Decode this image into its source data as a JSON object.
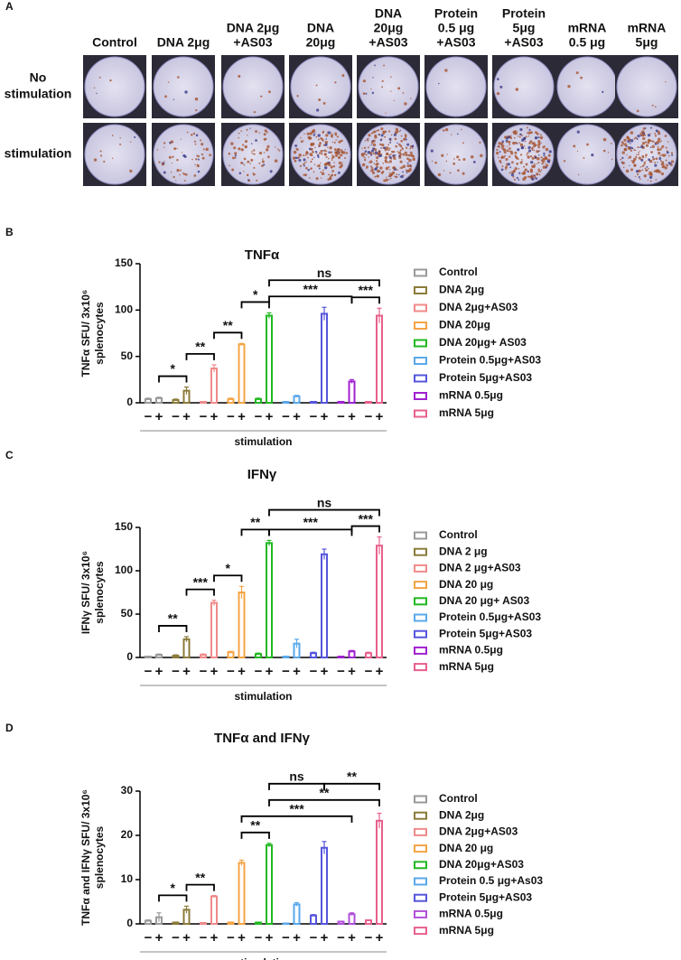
{
  "panel_a": {
    "label": "A",
    "columns": [
      [
        "Control"
      ],
      [
        "DNA 2μg"
      ],
      [
        "DNA 2μg",
        "+AS03"
      ],
      [
        "DNA",
        "20μg"
      ],
      [
        "DNA",
        "20μg",
        "+AS03"
      ],
      [
        "Protein",
        "0.5 μg",
        "+AS03"
      ],
      [
        "Protein",
        "5μg",
        "+AS03"
      ],
      [
        "mRNA",
        "0.5 μg"
      ],
      [
        "mRNA",
        "5μg"
      ]
    ],
    "rows": [
      [
        "No",
        "stimulation"
      ],
      [
        "stimulation"
      ]
    ]
  },
  "chart_data": [
    {
      "type": "bar",
      "panel": "B",
      "title": "TNFα",
      "ylabel": [
        "TNFα SFU/ 3x10⁶",
        "splenocytes"
      ],
      "xlabel": "stimulation",
      "conditions": [
        "−",
        "+"
      ],
      "ylim": [
        0,
        150
      ],
      "yticks": [
        0,
        50,
        100,
        150
      ],
      "series": [
        {
          "name": "Control",
          "color": "#9a9a9a",
          "values": [
            4,
            5
          ],
          "errors": [
            1,
            1
          ]
        },
        {
          "name": "DNA 2μg",
          "color": "#8b7b3a",
          "values": [
            3,
            13
          ],
          "errors": [
            1,
            4
          ]
        },
        {
          "name": "DNA 2μg+AS03",
          "color": "#f08a8a",
          "values": [
            1,
            37
          ],
          "errors": [
            0,
            4
          ]
        },
        {
          "name": "DNA 20μg",
          "color": "#f4a445",
          "values": [
            4,
            63
          ],
          "errors": [
            1,
            1
          ]
        },
        {
          "name": "DNA 20μg+ AS03",
          "color": "#22b822",
          "values": [
            4,
            94
          ],
          "errors": [
            1,
            3
          ]
        },
        {
          "name": "Protein 0.5μg+AS03",
          "color": "#5aa8ea",
          "values": [
            1,
            7
          ],
          "errors": [
            0,
            1
          ]
        },
        {
          "name": "Protein 5μg+AS03",
          "color": "#5555dd",
          "values": [
            1,
            96
          ],
          "errors": [
            0,
            7
          ]
        },
        {
          "name": "mRNA 0.5μg",
          "color": "#a020d0",
          "values": [
            1,
            23
          ],
          "errors": [
            0,
            2
          ]
        },
        {
          "name": "mRNA 5μg",
          "color": "#e8608c",
          "values": [
            1,
            94
          ],
          "errors": [
            0,
            8
          ]
        }
      ],
      "brackets": [
        {
          "from": [
            0,
            1
          ],
          "to": [
            1,
            1
          ],
          "label": "*"
        },
        {
          "from": [
            1,
            1
          ],
          "to": [
            2,
            1
          ],
          "label": "**"
        },
        {
          "from": [
            2,
            1
          ],
          "to": [
            3,
            1
          ],
          "label": "**"
        },
        {
          "from": [
            3,
            1
          ],
          "to": [
            4,
            1
          ],
          "label": "*"
        },
        {
          "from": [
            4,
            1
          ],
          "to": [
            7,
            1
          ],
          "label": "***"
        },
        {
          "from": [
            7,
            1
          ],
          "to": [
            8,
            1
          ],
          "label": "***"
        },
        {
          "from": [
            4,
            1
          ],
          "to": [
            8,
            1
          ],
          "label": "ns"
        }
      ]
    },
    {
      "type": "bar",
      "panel": "C",
      "title": "IFNγ",
      "ylabel": [
        "IFNγ SFU/ 3x10⁶",
        "splenocytes"
      ],
      "xlabel": "stimulation",
      "conditions": [
        "−",
        "+"
      ],
      "ylim": [
        0,
        150
      ],
      "yticks": [
        0,
        50,
        100,
        150
      ],
      "series": [
        {
          "name": "Control",
          "color": "#9a9a9a",
          "values": [
            1,
            3
          ],
          "errors": [
            0,
            1
          ]
        },
        {
          "name": "DNA 2 μg",
          "color": "#8b7b3a",
          "values": [
            2,
            21
          ],
          "errors": [
            1,
            3
          ]
        },
        {
          "name": "DNA 2 μg+AS03",
          "color": "#f08a8a",
          "values": [
            3,
            63
          ],
          "errors": [
            1,
            3
          ]
        },
        {
          "name": "DNA 20 μg",
          "color": "#f4a445",
          "values": [
            6,
            75
          ],
          "errors": [
            1,
            7
          ]
        },
        {
          "name": "DNA 20 μg+ AS03",
          "color": "#22b822",
          "values": [
            4,
            132
          ],
          "errors": [
            1,
            3
          ]
        },
        {
          "name": "Protein 0.5μg+AS03",
          "color": "#5aa8ea",
          "values": [
            1,
            16
          ],
          "errors": [
            0,
            5
          ]
        },
        {
          "name": "Protein 5μg+AS03",
          "color": "#5555dd",
          "values": [
            5,
            119
          ],
          "errors": [
            1,
            6
          ]
        },
        {
          "name": "mRNA 0.5μg",
          "color": "#a020d0",
          "values": [
            1,
            7
          ],
          "errors": [
            0,
            1
          ]
        },
        {
          "name": "mRNA 5μg",
          "color": "#e8608c",
          "values": [
            5,
            129
          ],
          "errors": [
            1,
            10
          ]
        }
      ],
      "brackets": [
        {
          "from": [
            0,
            1
          ],
          "to": [
            1,
            1
          ],
          "label": "**"
        },
        {
          "from": [
            1,
            1
          ],
          "to": [
            2,
            1
          ],
          "label": "***"
        },
        {
          "from": [
            2,
            1
          ],
          "to": [
            3,
            1
          ],
          "label": "*"
        },
        {
          "from": [
            3,
            1
          ],
          "to": [
            4,
            1
          ],
          "label": "**"
        },
        {
          "from": [
            4,
            1
          ],
          "to": [
            7,
            1
          ],
          "label": "***"
        },
        {
          "from": [
            7,
            1
          ],
          "to": [
            8,
            1
          ],
          "label": "***"
        },
        {
          "from": [
            4,
            1
          ],
          "to": [
            8,
            1
          ],
          "label": "ns"
        }
      ]
    },
    {
      "type": "bar",
      "panel": "D",
      "title": "TNFα and IFNγ",
      "ylabel": [
        "TNFα and IFNγ SFU/ 3x10⁶",
        "splenocytes"
      ],
      "xlabel": "stimulation",
      "conditions": [
        "−",
        "+"
      ],
      "ylim": [
        0,
        30
      ],
      "yticks": [
        0,
        10,
        20,
        30
      ],
      "series": [
        {
          "name": "Control",
          "color": "#9a9a9a",
          "values": [
            0.7,
            1.5
          ],
          "errors": [
            0.2,
            1
          ]
        },
        {
          "name": "DNA 2μg",
          "color": "#8b7b3a",
          "values": [
            0.3,
            3.2
          ],
          "errors": [
            0.1,
            0.8
          ]
        },
        {
          "name": "DNA 2μg+AS03",
          "color": "#f08a8a",
          "values": [
            0.2,
            6.2
          ],
          "errors": [
            0.1,
            0.2
          ]
        },
        {
          "name": "DNA 20 μg",
          "color": "#f4a445",
          "values": [
            0.3,
            13.8
          ],
          "errors": [
            0.1,
            0.6
          ]
        },
        {
          "name": "DNA 20μg+AS03",
          "color": "#22b822",
          "values": [
            0.3,
            17.8
          ],
          "errors": [
            0.1,
            0.4
          ]
        },
        {
          "name": "Protein 0.5 μg+As03",
          "color": "#5aa8ea",
          "values": [
            0.1,
            4.4
          ],
          "errors": [
            0,
            0.4
          ]
        },
        {
          "name": "Protein 5μg+AS03",
          "color": "#5555dd",
          "values": [
            1.9,
            17.2
          ],
          "errors": [
            0.2,
            1.4
          ]
        },
        {
          "name": "mRNA 0.5μg",
          "color": "#b050d8",
          "values": [
            0.5,
            2.2
          ],
          "errors": [
            0.1,
            0.3
          ]
        },
        {
          "name": "mRNA 5μg",
          "color": "#e8608c",
          "values": [
            0.8,
            23.3
          ],
          "errors": [
            0.1,
            1.7
          ]
        }
      ],
      "brackets": [
        {
          "from": [
            0,
            1
          ],
          "to": [
            1,
            1
          ],
          "label": "*"
        },
        {
          "from": [
            1,
            1
          ],
          "to": [
            2,
            1
          ],
          "label": "**"
        },
        {
          "from": [
            3,
            1
          ],
          "to": [
            4,
            1
          ],
          "label": "**"
        },
        {
          "from": [
            3,
            1
          ],
          "to": [
            7,
            1
          ],
          "label": "***"
        },
        {
          "from": [
            4,
            1
          ],
          "to": [
            8,
            1
          ],
          "label": "**"
        },
        {
          "from": [
            4,
            1
          ],
          "to": [
            6,
            1
          ],
          "label": "ns"
        },
        {
          "from": [
            6,
            1
          ],
          "to": [
            8,
            1
          ],
          "label": "**"
        }
      ]
    }
  ]
}
